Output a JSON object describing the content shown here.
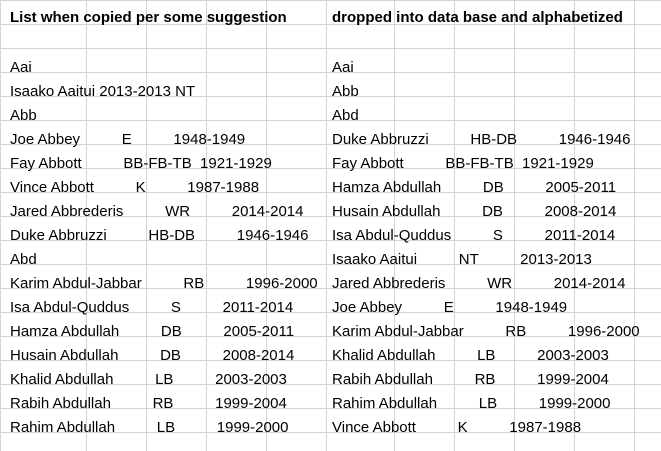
{
  "left": {
    "header": "List when copied per some suggestion",
    "rows": [
      "",
      "Aai",
      "Isaako Aaitui 2013-2013 NT",
      "Abb",
      "Joe Abbey          E          1948-1949",
      "Fay Abbott          BB-FB-TB  1921-1929",
      "Vince Abbott          K          1987-1988",
      "Jared Abbrederis          WR          2014-2014",
      "Duke Abbruzzi          HB-DB          1946-1946",
      "Abd",
      "Karim Abdul-Jabbar          RB          1996-2000",
      "Isa Abdul-Quddus          S          2011-2014",
      "Hamza Abdullah          DB          2005-2011",
      "Husain Abdullah          DB          2008-2014",
      "Khalid Abdullah          LB          2003-2003",
      "Rabih Abdullah          RB          1999-2004",
      "Rahim Abdullah          LB          1999-2000"
    ]
  },
  "right": {
    "header": "dropped into data base and alphabetized",
    "rows": [
      "",
      "Aai",
      "Abb",
      "Abd",
      "Duke Abbruzzi          HB-DB          1946-1946",
      "Fay Abbott          BB-FB-TB  1921-1929",
      "Hamza Abdullah          DB          2005-2011",
      "Husain Abdullah          DB          2008-2014",
      "Isa Abdul-Quddus          S          2011-2014",
      "Isaako Aaitui          NT          2013-2013",
      "Jared Abbrederis          WR          2014-2014",
      "Joe Abbey          E          1948-1949",
      "Karim Abdul-Jabbar          RB          1996-2000",
      "Khalid Abdullah          LB          2003-2003",
      "Rabih Abdullah          RB          1999-2004",
      "Rahim Abdullah          LB          1999-2000",
      "Vince Abbott          K          1987-1988"
    ]
  }
}
